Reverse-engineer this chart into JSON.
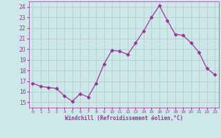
{
  "x": [
    0,
    1,
    2,
    3,
    4,
    5,
    6,
    7,
    8,
    9,
    10,
    11,
    12,
    13,
    14,
    15,
    16,
    17,
    18,
    19,
    20,
    21,
    22,
    23
  ],
  "y": [
    16.8,
    16.5,
    16.4,
    16.3,
    15.6,
    15.1,
    15.8,
    15.5,
    16.8,
    18.6,
    19.9,
    19.8,
    19.5,
    20.6,
    21.7,
    23.0,
    24.1,
    22.7,
    21.4,
    21.3,
    20.6,
    19.7,
    18.2,
    17.6
  ],
  "line_color": "#993399",
  "marker": "D",
  "marker_size": 2.5,
  "bg_color": "#cce8e8",
  "grid_color": "#b8cccc",
  "xlabel": "Windchill (Refroidissement éolien,°C)",
  "ylim": [
    14.5,
    24.5
  ],
  "xlim": [
    -0.5,
    23.5
  ],
  "yticks": [
    15,
    16,
    17,
    18,
    19,
    20,
    21,
    22,
    23,
    24
  ],
  "xticks": [
    0,
    1,
    2,
    3,
    4,
    5,
    6,
    7,
    8,
    9,
    10,
    11,
    12,
    13,
    14,
    15,
    16,
    17,
    18,
    19,
    20,
    21,
    22,
    23
  ],
  "tick_color": "#993399",
  "label_color": "#993399"
}
